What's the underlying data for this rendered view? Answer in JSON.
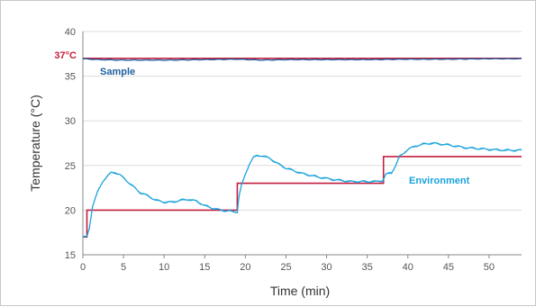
{
  "chart_data": {
    "type": "line",
    "xlabel": "Time (min)",
    "ylabel": "Temperature (°C)",
    "xlim": [
      0,
      54
    ],
    "ylim": [
      15,
      40
    ],
    "x_ticks": [
      0,
      5,
      10,
      15,
      20,
      25,
      30,
      35,
      40,
      45,
      50
    ],
    "y_ticks": [
      15,
      20,
      25,
      30,
      35,
      40
    ],
    "grid": "horizontal",
    "colors": {
      "red": "#c41f3e",
      "dark_blue": "#1f5fa0",
      "light_blue": "#1ba3dc",
      "grid": "#dddddd"
    },
    "annotations": [
      {
        "text": "37°C",
        "color": "#c41f3e"
      },
      {
        "text": "Sample",
        "color": "#1f5fa0"
      },
      {
        "text": "Environment",
        "color": "#1ba3dc"
      }
    ],
    "series": [
      {
        "color": "#c41f3e",
        "step": true,
        "x": [
          0,
          0.5,
          0.5,
          19,
          19,
          37,
          37,
          54
        ],
        "y": [
          17,
          17,
          20,
          20,
          23,
          23,
          26,
          26
        ]
      },
      {
        "color": "#c41f3e",
        "x": [
          0,
          54
        ],
        "y": [
          37,
          37
        ]
      },
      {
        "name": "Sample",
        "color": "#1f5fa0",
        "x": [
          0,
          2,
          5,
          10,
          15,
          19,
          22,
          25,
          30,
          35,
          40,
          45,
          50,
          54
        ],
        "y": [
          36.95,
          36.85,
          36.8,
          36.8,
          36.85,
          36.9,
          36.8,
          36.85,
          36.85,
          36.85,
          36.9,
          36.9,
          36.95,
          36.95
        ]
      },
      {
        "name": "Environment",
        "color": "#1ba3dc",
        "x": [
          0,
          0.5,
          0.8,
          1.2,
          1.8,
          2.5,
          3,
          3.5,
          4,
          4.5,
          5,
          6,
          7,
          8,
          9,
          10,
          11,
          12,
          13,
          14,
          15,
          16,
          17,
          18,
          18.7,
          19,
          19.2,
          19.5,
          20,
          20.5,
          21,
          21.5,
          22,
          23,
          24,
          25,
          27,
          29,
          31,
          33,
          35,
          36,
          36.9,
          37.3,
          38,
          38.5,
          39,
          40,
          41,
          42,
          43,
          44,
          45,
          47,
          50,
          52,
          54
        ],
        "y": [
          17,
          17,
          18,
          20.5,
          22,
          23.3,
          23.8,
          24.2,
          24.2,
          24,
          23.6,
          22.8,
          22,
          21.6,
          21.1,
          20.9,
          20.9,
          21.1,
          21.2,
          21,
          20.5,
          20.2,
          20,
          19.9,
          19.8,
          19.8,
          21.5,
          22.7,
          24,
          25.2,
          25.9,
          26.1,
          26.1,
          25.8,
          25.2,
          24.7,
          24.1,
          23.7,
          23.4,
          23.2,
          23.2,
          23.2,
          23.3,
          24,
          24.2,
          25,
          26,
          26.8,
          27.2,
          27.4,
          27.5,
          27.4,
          27.3,
          27,
          26.8,
          26.7,
          26.7
        ]
      }
    ]
  }
}
